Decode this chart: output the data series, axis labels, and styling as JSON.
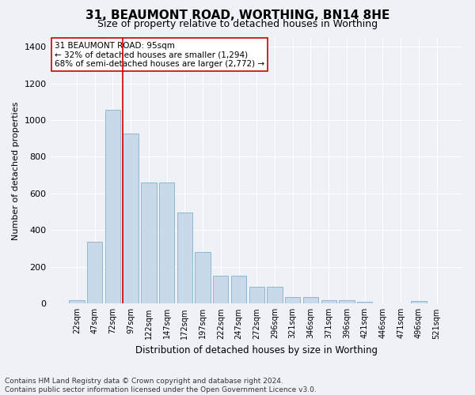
{
  "title": "31, BEAUMONT ROAD, WORTHING, BN14 8HE",
  "subtitle": "Size of property relative to detached houses in Worthing",
  "xlabel": "Distribution of detached houses by size in Worthing",
  "ylabel": "Number of detached properties",
  "categories": [
    "22sqm",
    "47sqm",
    "72sqm",
    "97sqm",
    "122sqm",
    "147sqm",
    "172sqm",
    "197sqm",
    "222sqm",
    "247sqm",
    "272sqm",
    "296sqm",
    "321sqm",
    "346sqm",
    "371sqm",
    "396sqm",
    "421sqm",
    "446sqm",
    "471sqm",
    "496sqm",
    "521sqm"
  ],
  "values": [
    20,
    335,
    1055,
    925,
    660,
    660,
    495,
    280,
    150,
    150,
    90,
    90,
    35,
    35,
    20,
    20,
    12,
    0,
    0,
    13,
    0
  ],
  "bar_color": "#c9d9e9",
  "bar_edge_color": "#90b8d0",
  "vline_color": "#cc0000",
  "vline_index": 2.575,
  "annotation_text": "31 BEAUMONT ROAD: 95sqm\n← 32% of detached houses are smaller (1,294)\n68% of semi-detached houses are larger (2,772) →",
  "annotation_box_facecolor": "#ffffff",
  "annotation_box_edgecolor": "#cc0000",
  "ylim": [
    0,
    1450
  ],
  "yticks": [
    0,
    200,
    400,
    600,
    800,
    1000,
    1200,
    1400
  ],
  "bg_color": "#eef2f7",
  "plot_bg_color": "#eef2f7",
  "footer": "Contains HM Land Registry data © Crown copyright and database right 2024.\nContains public sector information licensed under the Open Government Licence v3.0.",
  "title_fontsize": 11,
  "subtitle_fontsize": 9,
  "xlabel_fontsize": 8.5,
  "ylabel_fontsize": 8,
  "tick_fontsize": 8,
  "xtick_fontsize": 7,
  "footer_fontsize": 6.5,
  "annotation_fontsize": 7.5
}
